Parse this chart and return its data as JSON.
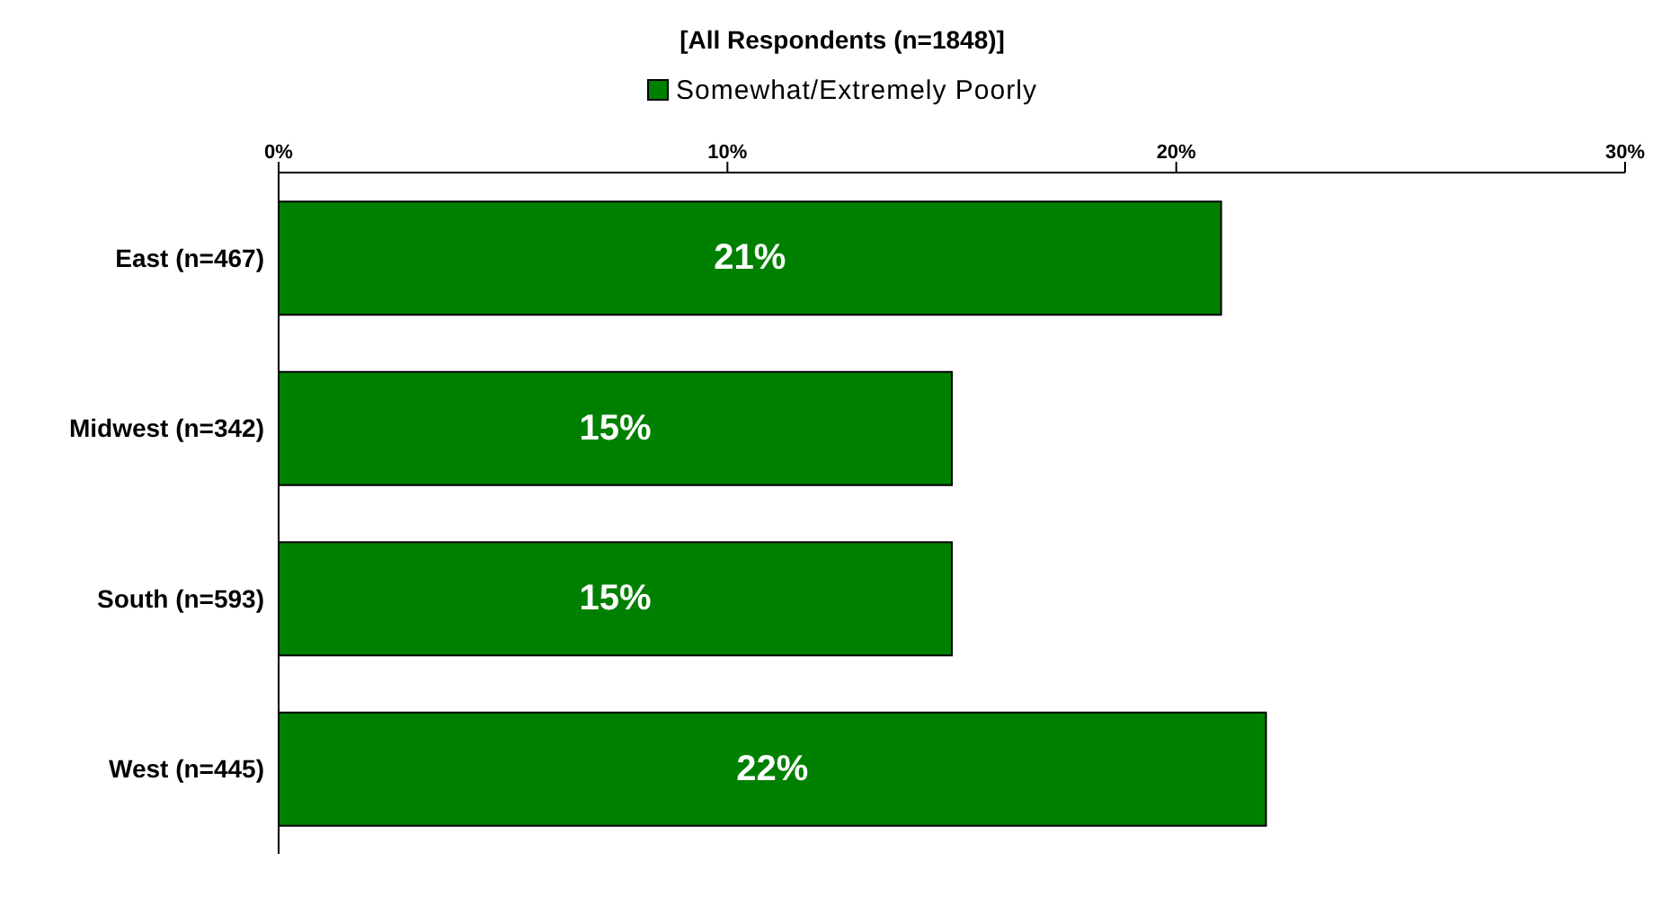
{
  "chart_data": {
    "type": "bar",
    "orientation": "horizontal",
    "title": "[All Respondents (n=1848)]",
    "categories": [
      "East (n=467)",
      "Midwest (n=342)",
      "South (n=593)",
      "West (n=445)"
    ],
    "series": [
      {
        "name": "Somewhat/Extremely Poorly",
        "color": "#008000",
        "values": [
          21,
          15,
          15,
          22
        ],
        "value_labels": [
          "21%",
          "15%",
          "15%",
          "22%"
        ]
      }
    ],
    "xlim": [
      0,
      30
    ],
    "xticks": [
      {
        "value": 0,
        "label": "0%"
      },
      {
        "value": 10,
        "label": "10%"
      },
      {
        "value": 20,
        "label": "20%"
      },
      {
        "value": 30,
        "label": "30%"
      }
    ],
    "grid": false,
    "legend": "top"
  }
}
